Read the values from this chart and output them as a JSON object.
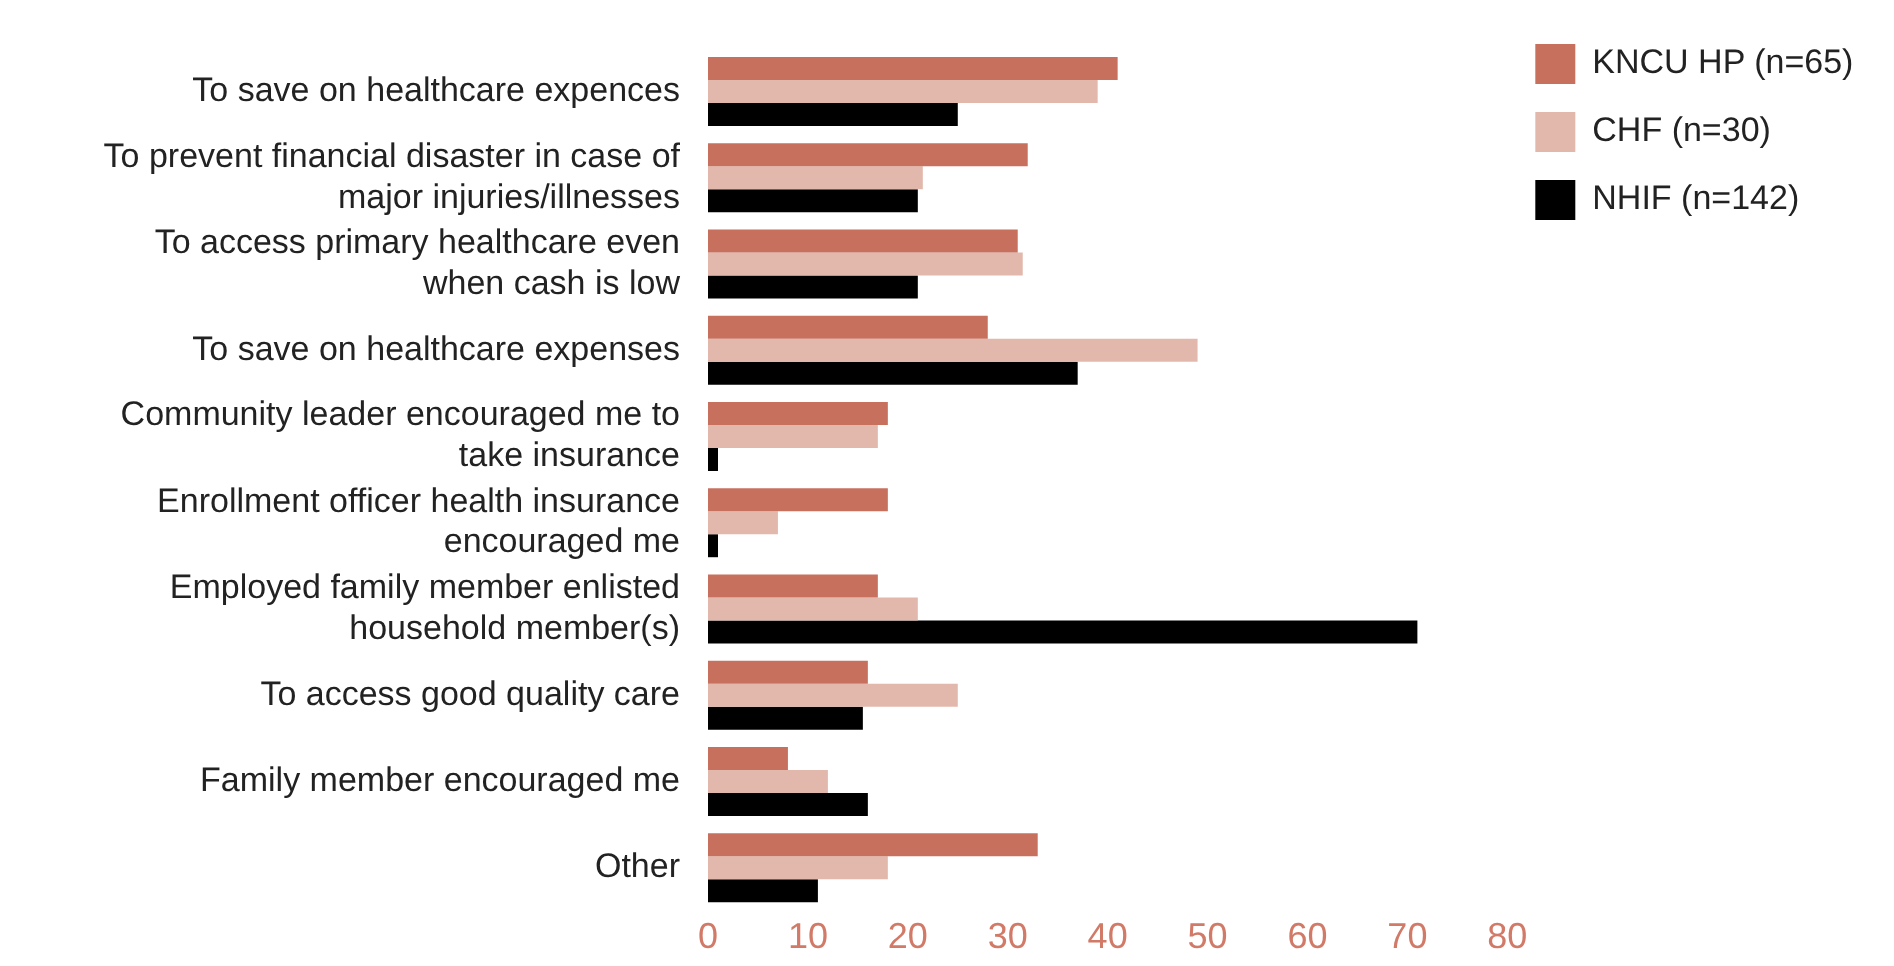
{
  "chart_data": {
    "type": "bar",
    "orientation": "horizontal",
    "categories": [
      "To save on healthcare expences",
      "To prevent financial disaster in case of major injuries/illnesses",
      "To access primary healthcare even when cash is low",
      "To save on healthcare expenses",
      "Community leader encouraged me to take insurance",
      "Enrollment officer health insurance encouraged me",
      "Employed family member enlisted household member(s)",
      "To access good quality care",
      "Family member encouraged me",
      "Other"
    ],
    "series": [
      {
        "name": "KNCU HP (n=65)",
        "color": "#c8705e",
        "values": [
          41,
          32,
          31,
          28,
          18,
          18,
          17,
          16,
          8,
          33
        ]
      },
      {
        "name": "CHF (n=30)",
        "color": "#e3b8ac",
        "values": [
          39,
          21.5,
          31.5,
          49,
          17,
          7,
          21,
          25,
          12,
          18
        ]
      },
      {
        "name": "NHIF (n=142)",
        "color": "#000000",
        "values": [
          25,
          21,
          21,
          37,
          1,
          1,
          71,
          15.5,
          16,
          11
        ]
      }
    ],
    "xlim": [
      0,
      80
    ],
    "xticks": [
      0,
      10,
      20,
      30,
      40,
      50,
      60,
      70,
      80
    ],
    "grid": false,
    "legend": "top right"
  }
}
